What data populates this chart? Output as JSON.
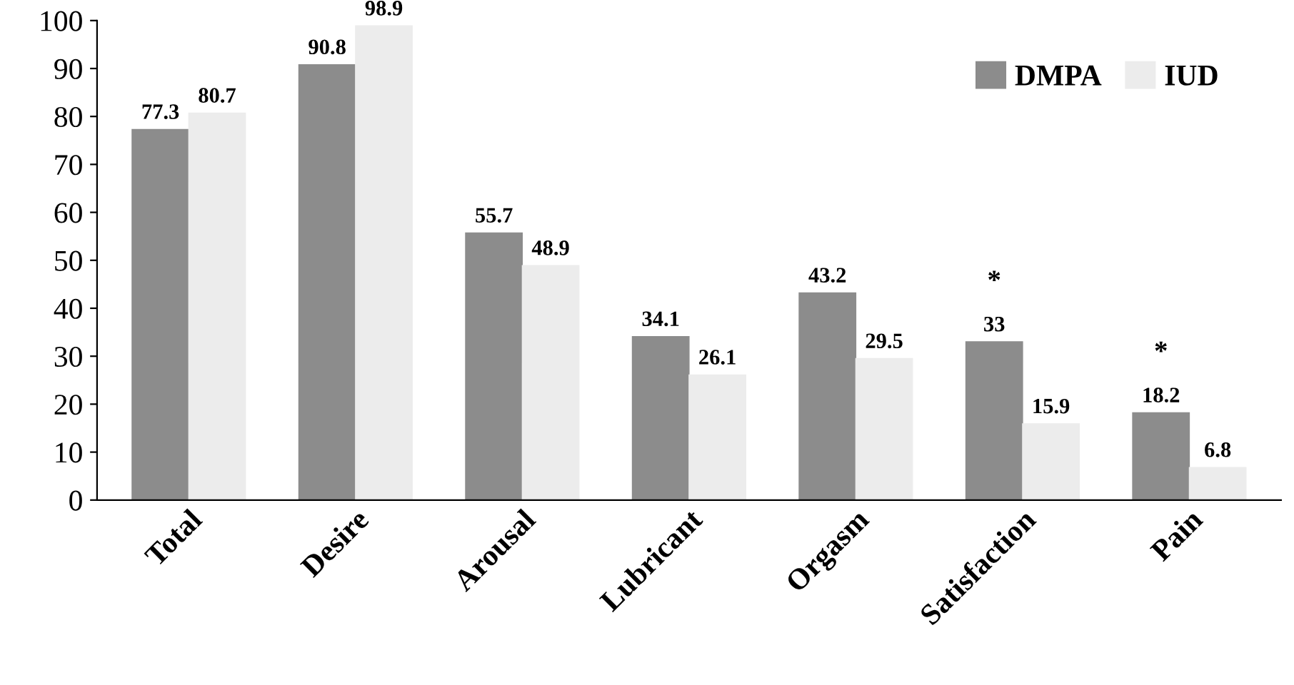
{
  "chart_data": {
    "type": "bar",
    "categories": [
      "Total",
      "Desire",
      "Arousal",
      "Lubricant",
      "Orgasm",
      "Satisfaction",
      "Pain"
    ],
    "series": [
      {
        "name": "DMPA",
        "color": "#8c8c8c",
        "values": [
          77.3,
          90.8,
          55.7,
          34.1,
          43.2,
          33,
          18.2
        ]
      },
      {
        "name": "IUD",
        "color": "#ececec",
        "values": [
          80.7,
          98.9,
          48.9,
          26.1,
          29.5,
          15.9,
          6.8
        ]
      }
    ],
    "data_labels": true,
    "annotations": [
      "*",
      "*"
    ],
    "ylim": [
      0,
      100
    ],
    "yticks": [
      0,
      10,
      20,
      30,
      40,
      50,
      60,
      70,
      80,
      90,
      100
    ],
    "grid": false,
    "legend": "top right"
  }
}
